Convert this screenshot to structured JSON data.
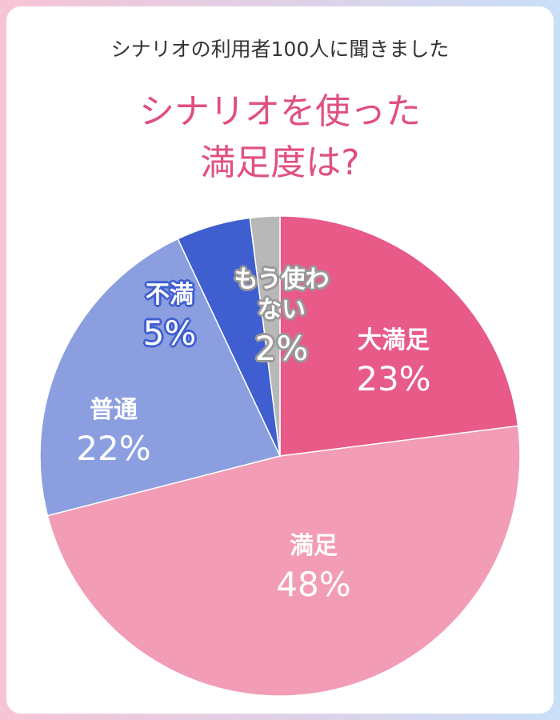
{
  "chart_data": {
    "type": "pie",
    "subtitle": "シナリオの利用者100人に聞きました",
    "title": "シナリオを使った満足度は?",
    "categories": [
      "大満足",
      "満足",
      "普通",
      "不満",
      "もう使わない"
    ],
    "values": [
      23,
      48,
      22,
      5,
      2
    ],
    "value_labels": [
      "23%",
      "48%",
      "22%",
      "5%",
      "2%"
    ],
    "colors": [
      "#e85a88",
      "#f29db5",
      "#8b9fe0",
      "#3f5fd0",
      "#b8b8b8"
    ]
  }
}
